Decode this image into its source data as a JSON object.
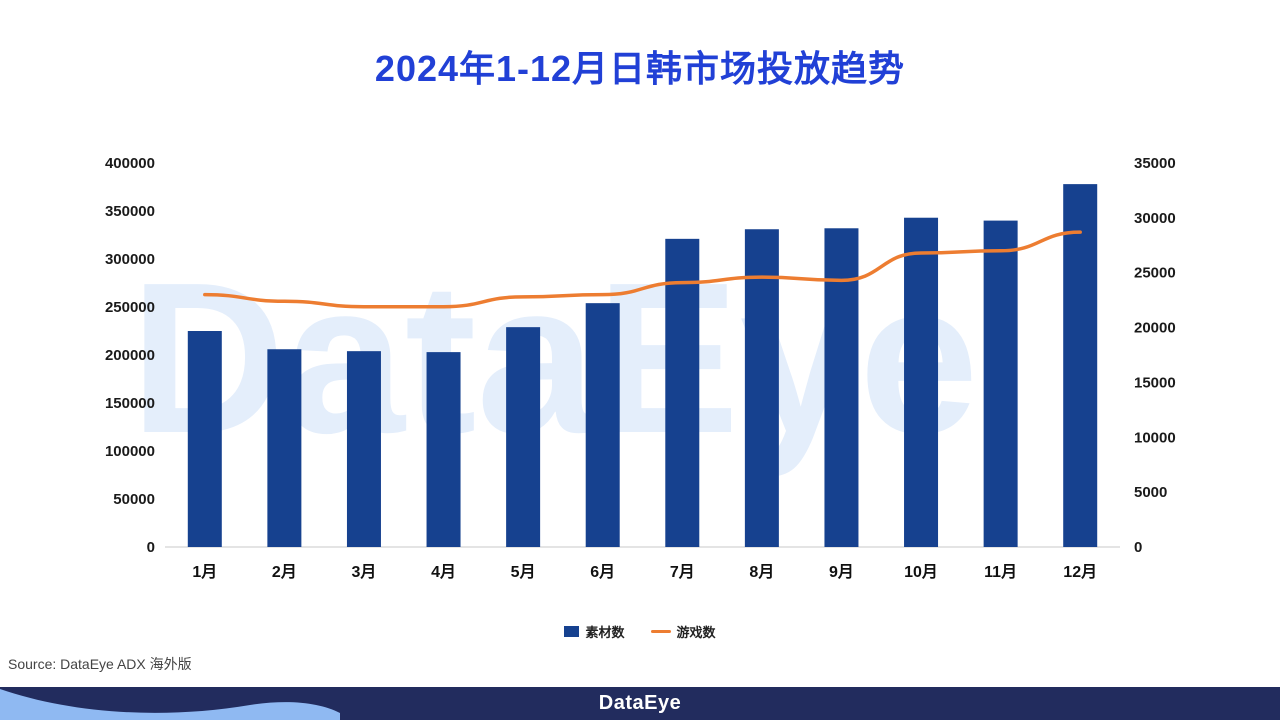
{
  "title": "2024年1-12月日韩市场投放趋势",
  "watermark": "DataEye",
  "source": "Source: DataEye ADX 海外版",
  "footer": {
    "logo": "DataEye"
  },
  "colors": {
    "title": "#2140d6",
    "bar": "#16418f",
    "line": "#ed7d31",
    "footer_bg": "#222c5e",
    "footer_wave": "#8fb9f2",
    "axis_line": "#c8c8c8"
  },
  "chart_data": {
    "type": "combo",
    "title": "2024年1-12月日韩市场投放趋势",
    "categories": [
      "1月",
      "2月",
      "3月",
      "4月",
      "5月",
      "6月",
      "7月",
      "8月",
      "9月",
      "10月",
      "11月",
      "12月"
    ],
    "series": [
      {
        "name": "素材数",
        "type": "bar",
        "axis": "left",
        "values": [
          225000,
          206000,
          204000,
          203000,
          229000,
          254000,
          321000,
          331000,
          332000,
          343000,
          340000,
          378000
        ]
      },
      {
        "name": "游戏数",
        "type": "line",
        "axis": "right",
        "values": [
          23000,
          22400,
          21900,
          21900,
          22800,
          23000,
          24100,
          24600,
          24300,
          26800,
          27000,
          28700
        ]
      }
    ],
    "left_axis": {
      "min": 0,
      "max": 400000,
      "step": 50000
    },
    "right_axis": {
      "min": 0,
      "max": 35000,
      "step": 5000
    },
    "grid": false,
    "legend_position": "bottom"
  }
}
